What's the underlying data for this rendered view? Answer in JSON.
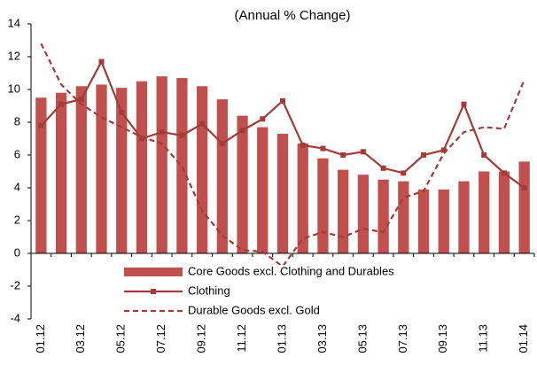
{
  "chart_data": {
    "type": "bar_line",
    "title": "(Annual % Change)",
    "categories": [
      "01.12",
      null,
      "03.12",
      null,
      "05.12",
      null,
      "07.12",
      null,
      "09.12",
      null,
      "11.12",
      null,
      "01.13",
      null,
      "03.13",
      null,
      "05.13",
      null,
      "07.13",
      null,
      "09.13",
      null,
      "11.13",
      null,
      "01.14"
    ],
    "series": [
      {
        "name": "Core Goods excl. Clothing and Durables",
        "type": "bar",
        "color": "#c0504d",
        "values": [
          9.5,
          9.8,
          10.2,
          10.3,
          10.1,
          10.5,
          10.8,
          10.7,
          10.2,
          9.4,
          8.4,
          7.7,
          7.3,
          6.7,
          5.8,
          5.1,
          4.8,
          4.5,
          4.4,
          3.9,
          3.9,
          4.4,
          5.0,
          5.0,
          5.6
        ]
      },
      {
        "name": "Clothing",
        "type": "line",
        "marker": "square",
        "color": "#a33b38",
        "values": [
          7.8,
          9.1,
          9.4,
          11.7,
          8.6,
          7.0,
          7.4,
          7.2,
          7.9,
          6.7,
          7.5,
          8.2,
          9.3,
          6.6,
          6.4,
          6.0,
          6.2,
          5.2,
          4.9,
          6.0,
          6.3,
          9.1,
          6.0,
          4.9,
          4.0
        ]
      },
      {
        "name": "Durable Goods excl. Gold",
        "type": "dashed-line",
        "color": "#a33b38",
        "values": [
          12.8,
          10.3,
          9.1,
          8.3,
          7.7,
          7.1,
          6.7,
          5.3,
          2.6,
          1.1,
          0.2,
          0.1,
          -0.8,
          0.9,
          1.3,
          1.0,
          1.5,
          1.3,
          3.4,
          3.8,
          6.1,
          7.4,
          7.7,
          7.6,
          10.6
        ]
      }
    ],
    "ylim": [
      -4,
      14
    ],
    "yticks": [
      -4,
      -2,
      0,
      2,
      4,
      6,
      8,
      10,
      12,
      14
    ],
    "grid": false,
    "legend": "lower center"
  }
}
